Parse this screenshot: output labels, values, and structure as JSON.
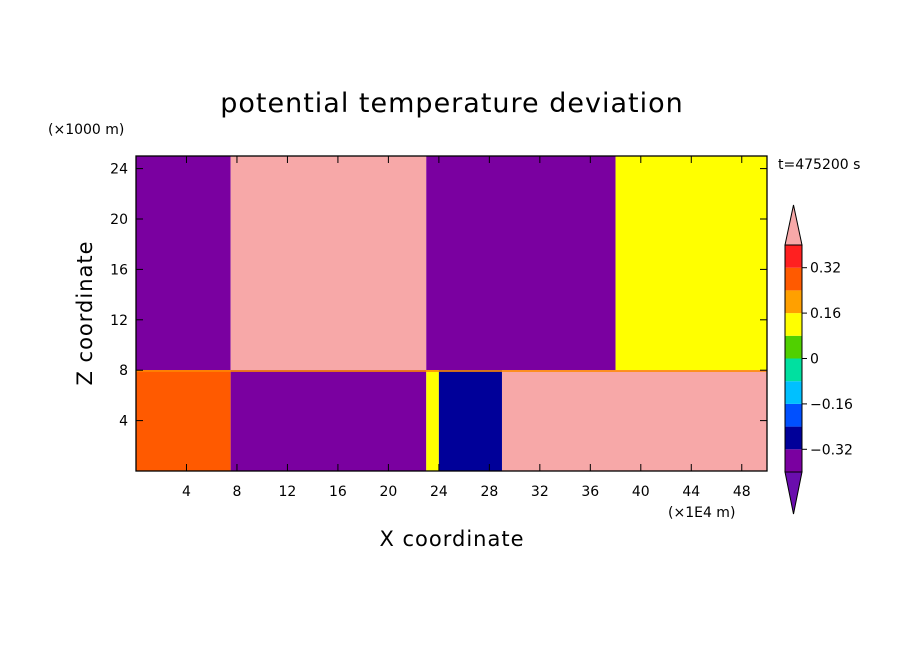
{
  "chart_data": {
    "type": "heatmap",
    "title": "potential temperature deviation",
    "xlabel": "X coordinate",
    "ylabel": "Z coordinate",
    "x_unit": "(×1E4 m)",
    "y_unit": "(×1000 m)",
    "time_label": "t=475200 s",
    "xlim": [
      0,
      50
    ],
    "ylim": [
      0,
      25
    ],
    "x_ticks": [
      "4",
      "8",
      "12",
      "16",
      "20",
      "24",
      "28",
      "32",
      "36",
      "40",
      "44",
      "48"
    ],
    "y_ticks": [
      "4",
      "8",
      "12",
      "16",
      "20",
      "24"
    ],
    "colorbar": {
      "orientation": "vertical",
      "extend": "both",
      "range": [
        -0.4,
        0.4
      ],
      "level_step": 0.08,
      "tick_labels": [
        "0.32",
        "0.16",
        "0",
        "-0.16",
        "-0.32"
      ],
      "tick_values": [
        0.32,
        0.16,
        0,
        -0.16,
        -0.32
      ],
      "colors_low_to_high": [
        "#6a0dad",
        "#7a00a0",
        "#000099",
        "#0050ff",
        "#00c0ff",
        "#00e0a0",
        "#50d000",
        "#ffff00",
        "#ffa000",
        "#ff5a00",
        "#ff2020",
        "#f7a8a8"
      ]
    },
    "upper_layer_columns": [
      {
        "x": [
          0,
          7.5
        ],
        "value": -0.36
      },
      {
        "x": [
          7.5,
          23
        ],
        "value": 0.44
      },
      {
        "x": [
          23,
          38
        ],
        "value": -0.38
      },
      {
        "x": [
          38,
          50
        ],
        "value": 0.12
      }
    ],
    "lower_layer_columns": [
      {
        "x": [
          0,
          7.5
        ],
        "value": 0.3
      },
      {
        "x": [
          7.5,
          23
        ],
        "value": -0.38
      },
      {
        "x": [
          23,
          24
        ],
        "value": 0.1
      },
      {
        "x": [
          24,
          29
        ],
        "value": -0.3
      },
      {
        "x": [
          29,
          50
        ],
        "value": 0.4
      }
    ],
    "interface_height": 8,
    "grid": false
  }
}
